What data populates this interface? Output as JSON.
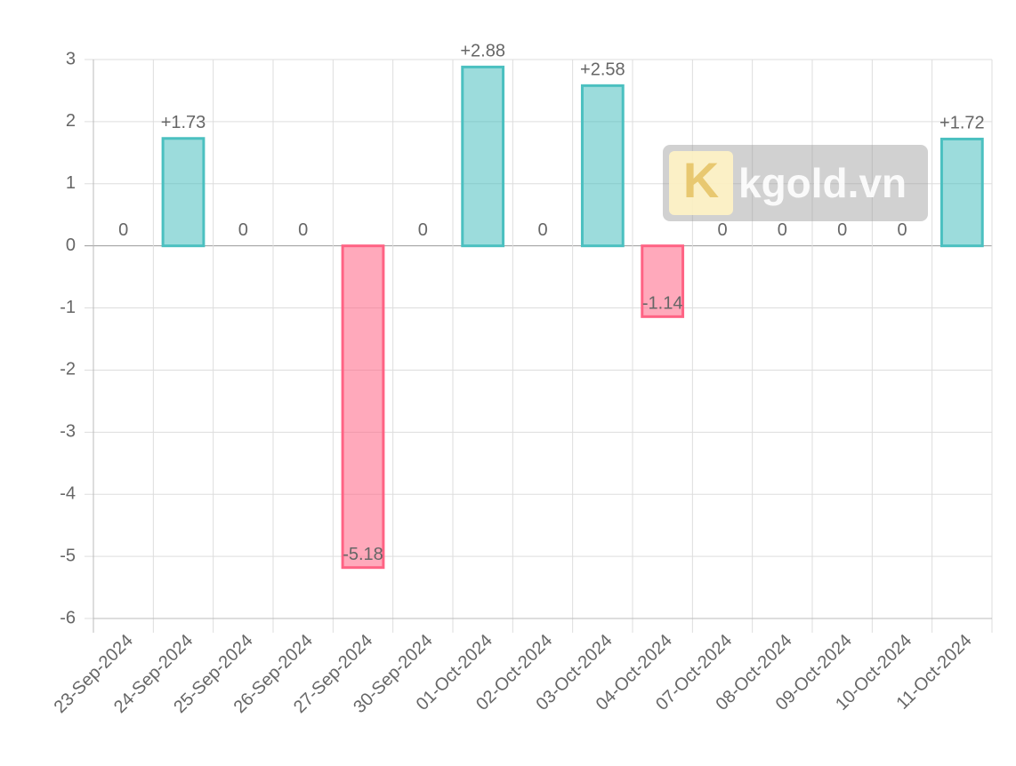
{
  "chart_data": {
    "type": "bar",
    "categories": [
      "23-Sep-2024",
      "24-Sep-2024",
      "25-Sep-2024",
      "26-Sep-2024",
      "27-Sep-2024",
      "30-Sep-2024",
      "01-Oct-2024",
      "02-Oct-2024",
      "03-Oct-2024",
      "04-Oct-2024",
      "07-Oct-2024",
      "08-Oct-2024",
      "09-Oct-2024",
      "10-Oct-2024",
      "11-Oct-2024"
    ],
    "values": [
      0,
      1.73,
      0,
      0,
      -5.18,
      0,
      2.88,
      0,
      2.58,
      -1.14,
      0,
      0,
      0,
      0,
      1.72
    ],
    "value_labels": [
      "0",
      "+1.73",
      "0",
      "0",
      "-5.18",
      "0",
      "+2.88",
      "0",
      "+2.58",
      "-1.14",
      "0",
      "0",
      "0",
      "0",
      "+1.72"
    ],
    "colors": {
      "positive": "#4bc0c0",
      "negative": "#ff6384"
    },
    "ylim": [
      -6,
      3
    ],
    "yticks": [
      -6,
      -5,
      -4,
      -3,
      -2,
      -1,
      0,
      1,
      2,
      3
    ],
    "grid": true,
    "watermark": "kgold.vn"
  }
}
